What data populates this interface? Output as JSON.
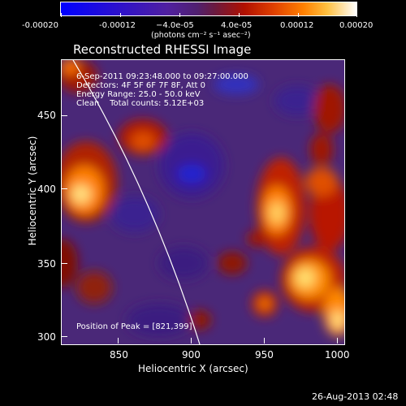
{
  "colorbar": {
    "ticks": [
      "-0.00020",
      "-0.00012",
      "−4.0e-05",
      "4.0e-05",
      "0.00012",
      "0.00020"
    ],
    "unit": "(photons cm⁻² s⁻¹ asec⁻²)"
  },
  "title": "Reconstructed RHESSI Image",
  "info": {
    "time": "6-Sep-2011 09:23:48.000 to 09:27:00.000",
    "detectors": "Detectors: 4F 5F 6F 7F 8F, Att 0",
    "energy": "Energy Range: 25.0 - 50.0 keV",
    "method": "Clean    Total counts: 5.12E+03"
  },
  "peak": "Position of Peak = [821,399]",
  "x_axis": {
    "label": "Heliocentric X (arcsec)",
    "ticks": [
      "850",
      "900",
      "950",
      "1000"
    ]
  },
  "y_axis": {
    "label": "Heliocentric Y (arcsec)",
    "ticks": [
      "450",
      "400",
      "350",
      "300"
    ]
  },
  "footer_date": "26-Aug-2013 02:48",
  "colors": {
    "negative": "#1010ff",
    "zero": "#4a2080",
    "positive_low": "#c02000",
    "positive_mid": "#ff8000",
    "positive_high": "#ffffff"
  }
}
